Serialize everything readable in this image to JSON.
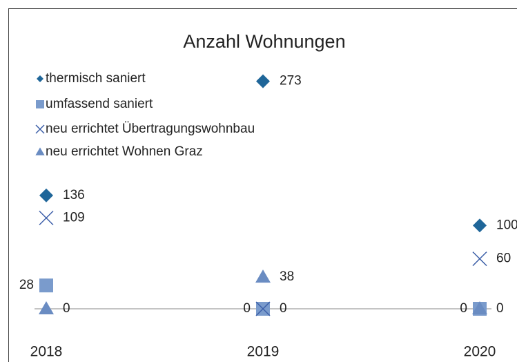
{
  "chart_data": {
    "type": "scatter",
    "title": "Anzahl Wohnungen",
    "categories": [
      "2018",
      "2019",
      "2020"
    ],
    "ylim": [
      0,
      300
    ],
    "legend": "top-left",
    "series": [
      {
        "name": "thermisch saniert",
        "color": "#1f6699",
        "marker": "diamond",
        "values": [
          136,
          273,
          100
        ]
      },
      {
        "name": "umfassend saniert",
        "color": "#7a9bcc",
        "marker": "square",
        "values": [
          28,
          0,
          0
        ]
      },
      {
        "name": "neu errichtet Übertragungswohnbau",
        "color": "#3c5fa8",
        "marker": "x",
        "values": [
          109,
          0,
          60
        ]
      },
      {
        "name": "neu errichtet Wohnen Graz",
        "color": "#6a8cc2",
        "marker": "triangle",
        "values": [
          0,
          38,
          0
        ]
      }
    ]
  }
}
